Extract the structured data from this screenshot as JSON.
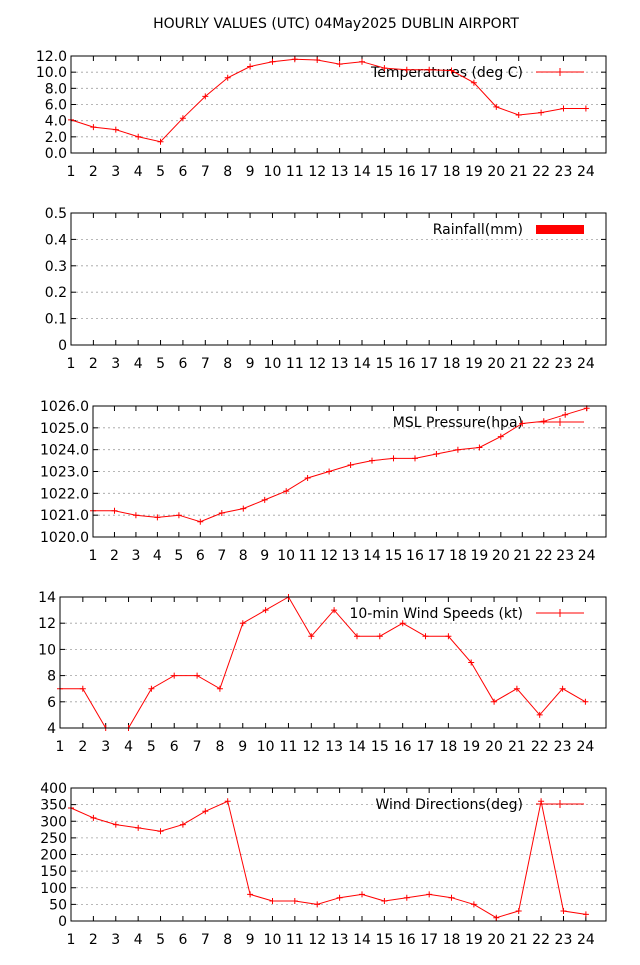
{
  "page": {
    "title": "HOURLY VALUES (UTC) 04May2025  DUBLIN AIRPORT"
  },
  "colors": {
    "series": "#ff0000",
    "frame": "#000000",
    "grid": "#a0a0a0"
  },
  "chart_data": [
    {
      "id": "temperature",
      "type": "line",
      "title": "",
      "legend": "Temperatures (deg C)",
      "legend_position": "top-right",
      "grid": "horizontal",
      "x": [
        1,
        2,
        3,
        4,
        5,
        6,
        7,
        8,
        9,
        10,
        11,
        12,
        13,
        14,
        15,
        16,
        17,
        18,
        19,
        20,
        21,
        22,
        23,
        24
      ],
      "xlim": [
        1,
        24.9
      ],
      "ylim": [
        0,
        12
      ],
      "yticks": [
        0,
        2,
        4,
        6,
        8,
        10,
        12
      ],
      "ytick_decimals": 1,
      "values": [
        4.1,
        3.2,
        2.9,
        2.0,
        1.4,
        4.3,
        7.0,
        9.3,
        10.7,
        11.3,
        11.6,
        11.5,
        11.0,
        11.3,
        10.5,
        10.3,
        10.3,
        10.2,
        8.7,
        5.7,
        4.7,
        5.0,
        5.5,
        5.5
      ]
    },
    {
      "id": "rainfall",
      "type": "bar",
      "title": "",
      "legend": "Rainfall(mm)",
      "legend_position": "top-right",
      "grid": "horizontal",
      "x": [
        1,
        2,
        3,
        4,
        5,
        6,
        7,
        8,
        9,
        10,
        11,
        12,
        13,
        14,
        15,
        16,
        17,
        18,
        19,
        20,
        21,
        22,
        23,
        24
      ],
      "xlim": [
        1,
        24.9
      ],
      "ylim": [
        0,
        0.5
      ],
      "yticks": [
        0,
        0.1,
        0.2,
        0.3,
        0.4,
        0.5
      ],
      "ytick_labels": [
        "0",
        "0.1",
        "0.2",
        "0.3",
        "0.4",
        "0.5"
      ],
      "values": [
        0,
        0,
        0,
        0,
        0,
        0,
        0,
        0,
        0,
        0,
        0,
        0,
        0,
        0,
        0,
        0,
        0,
        0,
        0,
        0,
        0,
        0,
        0,
        0
      ]
    },
    {
      "id": "pressure",
      "type": "line",
      "title": "",
      "legend": "MSL Pressure(hpa)",
      "legend_position": "top-right",
      "grid": "horizontal",
      "x": [
        1,
        2,
        3,
        4,
        5,
        6,
        7,
        8,
        9,
        10,
        11,
        12,
        13,
        14,
        15,
        16,
        17,
        18,
        19,
        20,
        21,
        22,
        23,
        24
      ],
      "xlim": [
        1,
        24.9
      ],
      "ylim": [
        1020,
        1026
      ],
      "yticks": [
        1020,
        1021,
        1022,
        1023,
        1024,
        1025,
        1026
      ],
      "ytick_decimals": 1,
      "values": [
        1021.2,
        1021.2,
        1021.0,
        1020.9,
        1021.0,
        1020.7,
        1021.1,
        1021.3,
        1021.7,
        1022.1,
        1022.7,
        1023.0,
        1023.3,
        1023.5,
        1023.6,
        1023.6,
        1023.8,
        1024.0,
        1024.1,
        1024.6,
        1025.2,
        1025.3,
        1025.6,
        1025.9
      ]
    },
    {
      "id": "wind-speed",
      "type": "line",
      "title": "",
      "legend": "10-min Wind Speeds (kt)",
      "legend_position": "top-right",
      "grid": "horizontal",
      "x": [
        1,
        2,
        3,
        4,
        5,
        6,
        7,
        8,
        9,
        10,
        11,
        12,
        13,
        14,
        15,
        16,
        17,
        18,
        19,
        20,
        21,
        22,
        23,
        24
      ],
      "xlim": [
        1,
        24.9
      ],
      "ylim": [
        4,
        14
      ],
      "yticks": [
        4,
        6,
        8,
        10,
        12,
        14
      ],
      "ytick_decimals": 0,
      "values": [
        7,
        7,
        4,
        4,
        7,
        8,
        8,
        7,
        12,
        13,
        14,
        11,
        13,
        11,
        11,
        12,
        11,
        11,
        9,
        6,
        7,
        5,
        7,
        6
      ]
    },
    {
      "id": "wind-direction",
      "type": "line",
      "title": "",
      "legend": "Wind Directions(deg)",
      "legend_position": "top-right",
      "grid": "horizontal",
      "x": [
        1,
        2,
        3,
        4,
        5,
        6,
        7,
        8,
        9,
        10,
        11,
        12,
        13,
        14,
        15,
        16,
        17,
        18,
        19,
        20,
        21,
        22,
        23,
        24
      ],
      "xlim": [
        1,
        24.9
      ],
      "ylim": [
        0,
        400
      ],
      "yticks": [
        0,
        50,
        100,
        150,
        200,
        250,
        300,
        350,
        400
      ],
      "ytick_decimals": 0,
      "values": [
        340,
        310,
        290,
        280,
        270,
        290,
        330,
        360,
        80,
        60,
        60,
        50,
        70,
        80,
        60,
        70,
        80,
        70,
        50,
        10,
        30,
        360,
        30,
        20
      ]
    }
  ]
}
